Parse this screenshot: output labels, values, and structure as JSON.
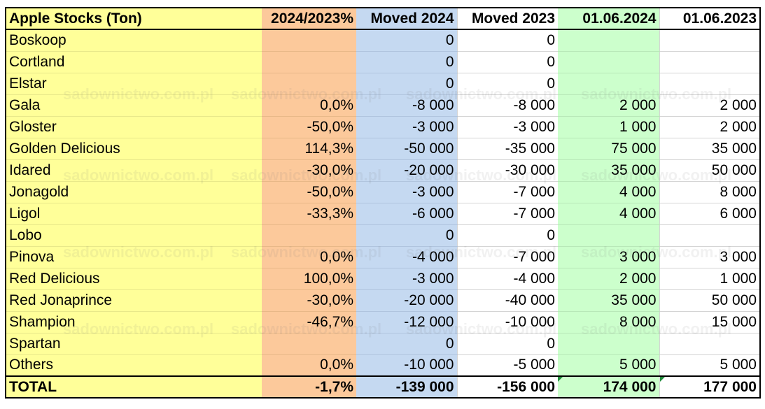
{
  "table": {
    "headers": [
      "Apple Stocks (Ton)",
      "2024/2023%",
      "Moved 2024",
      "Moved 2023",
      "01.06.2024",
      "01.06.2023"
    ],
    "rows": [
      [
        "Boskoop",
        "",
        "0",
        "0",
        "",
        ""
      ],
      [
        "Cortland",
        "",
        "0",
        "0",
        "",
        ""
      ],
      [
        "Elstar",
        "",
        "0",
        "0",
        "",
        ""
      ],
      [
        "Gala",
        "0,0%",
        "-8 000",
        "-8 000",
        "2 000",
        "2 000"
      ],
      [
        "Gloster",
        "-50,0%",
        "-3 000",
        "-3 000",
        "1 000",
        "2 000"
      ],
      [
        "Golden Delicious",
        "114,3%",
        "-50 000",
        "-35 000",
        "75 000",
        "35 000"
      ],
      [
        "Idared",
        "-30,0%",
        "-20 000",
        "-30 000",
        "35 000",
        "50 000"
      ],
      [
        "Jonagold",
        "-50,0%",
        "-3 000",
        "-7 000",
        "4 000",
        "8 000"
      ],
      [
        "Ligol",
        "-33,3%",
        "-6 000",
        "-7 000",
        "4 000",
        "6 000"
      ],
      [
        "Lobo",
        "",
        "0",
        "0",
        "",
        ""
      ],
      [
        "Pinova",
        "0,0%",
        "-4 000",
        "-7 000",
        "3 000",
        "3 000"
      ],
      [
        "Red Delicious",
        "100,0%",
        "-3 000",
        "-4 000",
        "2 000",
        "1 000"
      ],
      [
        "Red Jonaprince",
        "-30,0%",
        "-20 000",
        "-40 000",
        "35 000",
        "50 000"
      ],
      [
        "Shampion",
        "-46,7%",
        "-12 000",
        "-10 000",
        "8 000",
        "15 000"
      ],
      [
        "Spartan",
        "",
        "0",
        "0",
        "",
        ""
      ],
      [
        "Others",
        "0,0%",
        "-10 000",
        "-5 000",
        "5 000",
        "5 000"
      ]
    ],
    "total": [
      "TOTAL",
      "-1,7%",
      "-139 000",
      "-156 000",
      "174 000",
      "177 000"
    ]
  },
  "colors": {
    "name_column": "#ffff99",
    "percent_column": "#fcc99b",
    "moved_2024_column": "#c5d9f1",
    "stock_2024_column": "#ccffcc",
    "header_border": "#000000"
  },
  "watermark": "sadownictwo.com.pl"
}
